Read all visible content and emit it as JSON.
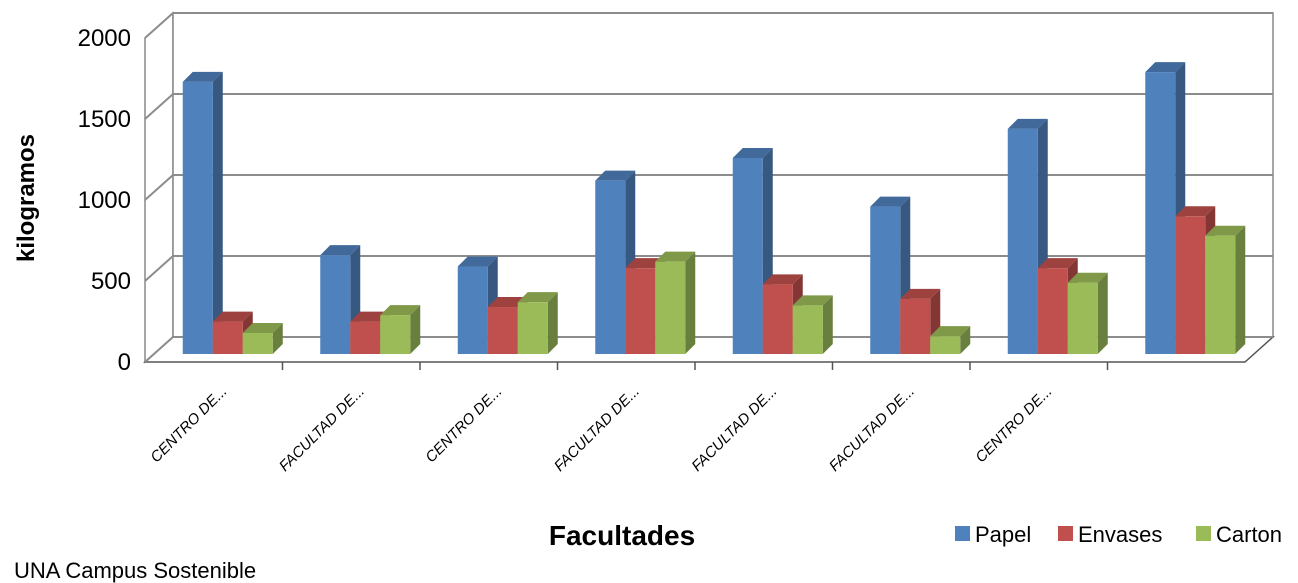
{
  "chart_data": {
    "type": "bar",
    "title": "",
    "xlabel": "Facultades",
    "ylabel": "kilogramos",
    "ylim": [
      0,
      2000
    ],
    "yticks": [
      0,
      500,
      1000,
      1500,
      2000
    ],
    "grid": true,
    "legend_position": "bottom-right",
    "categories": [
      "CENTRO DE...",
      "FACULTAD DE...",
      "CENTRO DE...",
      "FACULTAD DE...",
      "FACULTAD DE...",
      "FACULTAD DE...",
      "CENTRO DE...",
      ""
    ],
    "series": [
      {
        "name": "Papel",
        "color": "#4f81bd",
        "values": [
          1680,
          610,
          540,
          1070,
          1210,
          910,
          1390,
          1740
        ]
      },
      {
        "name": "Envases",
        "color": "#c0504d",
        "values": [
          200,
          200,
          290,
          530,
          430,
          340,
          530,
          850
        ]
      },
      {
        "name": "Carton",
        "color": "#9bbb59",
        "values": [
          130,
          240,
          320,
          570,
          300,
          110,
          440,
          730
        ]
      }
    ]
  },
  "footer": "UNA Campus Sostenible"
}
